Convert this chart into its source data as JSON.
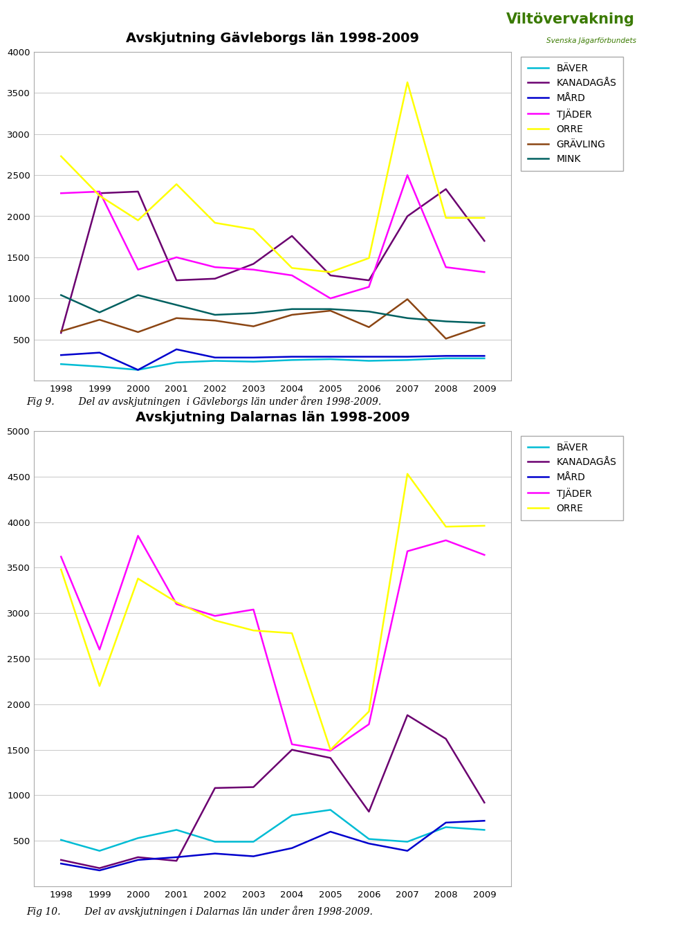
{
  "years": [
    1998,
    1999,
    2000,
    2001,
    2002,
    2003,
    2004,
    2005,
    2006,
    2007,
    2008,
    2009
  ],
  "chart1": {
    "title": "Avskjutning Gävleborgs län 1998-2009",
    "ylim": [
      0,
      4000
    ],
    "yticks": [
      0,
      500,
      1000,
      1500,
      2000,
      2500,
      3000,
      3500,
      4000
    ],
    "series": {
      "BÄVER": [
        200,
        170,
        130,
        220,
        240,
        230,
        250,
        260,
        240,
        250,
        270,
        270
      ],
      "KANADAGÅS": [
        580,
        2280,
        2300,
        1220,
        1240,
        1420,
        1760,
        1280,
        1220,
        2000,
        2330,
        1700
      ],
      "MÅRD": [
        310,
        340,
        130,
        380,
        280,
        280,
        290,
        290,
        290,
        290,
        300,
        300
      ],
      "TJÄDER": [
        2280,
        2300,
        1350,
        1500,
        1380,
        1350,
        1280,
        1000,
        1140,
        2500,
        1380,
        1320
      ],
      "ORRE": [
        2730,
        2250,
        1950,
        2390,
        1920,
        1840,
        1370,
        1320,
        1490,
        3630,
        1980,
        1980
      ],
      "GRÄVLING": [
        600,
        740,
        590,
        760,
        730,
        660,
        800,
        850,
        650,
        990,
        510,
        670
      ],
      "MINK": [
        1040,
        830,
        1040,
        920,
        800,
        820,
        870,
        870,
        840,
        760,
        720,
        700
      ]
    },
    "colors": {
      "BÄVER": "#00bcd4",
      "KANADAGÅS": "#6b0070",
      "MÅRD": "#0000cd",
      "TJÄDER": "#ff00ff",
      "ORRE": "#ffff00",
      "GRÄVLING": "#8b4513",
      "MINK": "#006060"
    },
    "legend_order": [
      "BÄVER",
      "KANADAGÅS",
      "MÅRD",
      "TJÄDER",
      "ORRE",
      "GRÄVLING",
      "MINK"
    ],
    "fig_caption": "Fig 9.        Del av avskjutningen  i Gävleborgs län under åren 1998-2009."
  },
  "chart2": {
    "title": "Avskjutning Dalarnas län 1998-2009",
    "ylim": [
      0,
      5000
    ],
    "yticks": [
      0,
      500,
      1000,
      1500,
      2000,
      2500,
      3000,
      3500,
      4000,
      4500,
      5000
    ],
    "series": {
      "BÄVER": [
        510,
        390,
        530,
        620,
        490,
        490,
        780,
        840,
        520,
        490,
        650,
        620
      ],
      "KANADAGÅS": [
        290,
        200,
        320,
        280,
        1080,
        1090,
        1500,
        1410,
        820,
        1880,
        1620,
        920
      ],
      "MÅRD": [
        250,
        175,
        290,
        320,
        360,
        330,
        420,
        600,
        470,
        390,
        700,
        720
      ],
      "TJÄDER": [
        3620,
        2600,
        3850,
        3100,
        2970,
        3040,
        1560,
        1490,
        1780,
        3680,
        3800,
        3640
      ],
      "ORRE": [
        3480,
        2200,
        3380,
        3120,
        2920,
        2810,
        2780,
        1500,
        1920,
        4530,
        3950,
        3960
      ]
    },
    "colors": {
      "BÄVER": "#00bcd4",
      "KANADAGÅS": "#6b0070",
      "MÅRD": "#0000cd",
      "TJÄDER": "#ff00ff",
      "ORRE": "#ffff00"
    },
    "legend_order": [
      "BÄVER",
      "KANADAGÅS",
      "MÅRD",
      "TJÄDER",
      "ORRE"
    ],
    "fig_caption": "Fig 10.        Del av avskjutningen i Dalarnas län under åren 1998-2009."
  },
  "logo_line1": "Viltövervakning",
  "logo_line2": "Svenska Jägarförbundets",
  "logo_color": "#3a7a00",
  "background_color": "#ffffff",
  "border_color": "#aaaaaa",
  "grid_color": "#cccccc",
  "spine_color": "#888888"
}
